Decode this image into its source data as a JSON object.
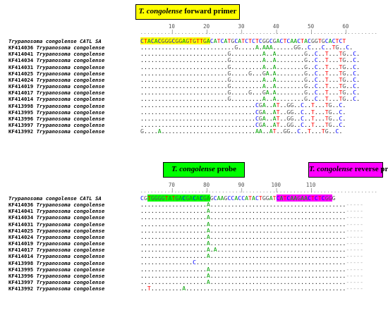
{
  "labels": {
    "forward_primer": {
      "species": "T. congolense",
      "suffix": " forward primer"
    },
    "probe": {
      "species": "T. congolense",
      "suffix": " probe"
    },
    "reverse_primer": {
      "species": "T. congolense",
      "suffix": " reverse primer"
    }
  },
  "block1": {
    "ruler_numbers": [
      "10",
      "20",
      "30",
      "40",
      "50",
      "60"
    ],
    "reference_name": "Trypanosoma congolense CATL SA",
    "reference_seq": "CTACACGGGCGGAGTGTTGACATCATGCATCTCTCGGCGACTCAACTACGGTGCACTCT",
    "accessions": [
      "KF414036",
      "KF414041",
      "KF414034",
      "KF414031",
      "KF414025",
      "KF414024",
      "KF414019",
      "KF414017",
      "KF414014",
      "KF413998",
      "KF413995",
      "KF413996",
      "KF413997",
      "KF413992"
    ],
    "species": "Trypanosoma congolense",
    "rows": [
      "...........................G.....A.AAA......GG..C...C..TG..C.",
      ".........................G.........A..A........G..C..T...TG..C.",
      ".........................G.........A..A........G..C..T...TG..C.",
      ".........................G.........A..A........G..C..T...TG..C.",
      ".........................G.....G...GA.A........G..C..T...TG..C.",
      ".........................G.........A..A........G..C..T...TG..C.",
      ".........................G.........A..A........G..C..T...TG..C.",
      ".........................G.....G...GA.A........G..C..T...TG..C.",
      ".........................G.........A..A........G..C..T...TG..C.",
      ".................................CGA..AT..GG..C..T...TG..C.",
      ".................................CGA..AT..GG..C..T...TG..C.",
      ".................................CGA..AT..GG..C..T...TG..C.",
      ".................................CGA..AT..GG..C..T...TG..C.",
      "G....A...........................AA..AT..GG..C..T...TG..C."
    ]
  },
  "block2": {
    "ruler_numbers": [
      "70",
      "80",
      "90",
      "100",
      "110"
    ],
    "reference_name": "Trypanosoma congolense CATL SA",
    "reference_seq": "CGTGGGGTATGACGACACGAGCAAGCCACCATACTGGATCATCAAGAACTCTCGGG",
    "accessions": [
      "KF414036",
      "KF414041",
      "KF414034",
      "KF414031",
      "KF414025",
      "KF414024",
      "KF414019",
      "KF414017",
      "KF414014",
      "KF413998",
      "KF413995",
      "KF413996",
      "KF413997",
      "KF413992"
    ],
    "species": "Trypanosoma congolense",
    "rows": [
      "...................A.......................................-----",
      "...................A.......................................-----",
      "...................A.......................................-----",
      "...................A.......................................-----",
      "...................A.......................................-----",
      "...................A.......................................-----",
      "...................A.......................................-----",
      "...................A.A.....................................-----",
      "...................A.......................................-----",
      "...............C...........................................-----",
      "...................A.......................................-----",
      "...................A.......................................-----",
      "...................A.......................................-----",
      "..T.........A..............................................-----"
    ]
  }
}
